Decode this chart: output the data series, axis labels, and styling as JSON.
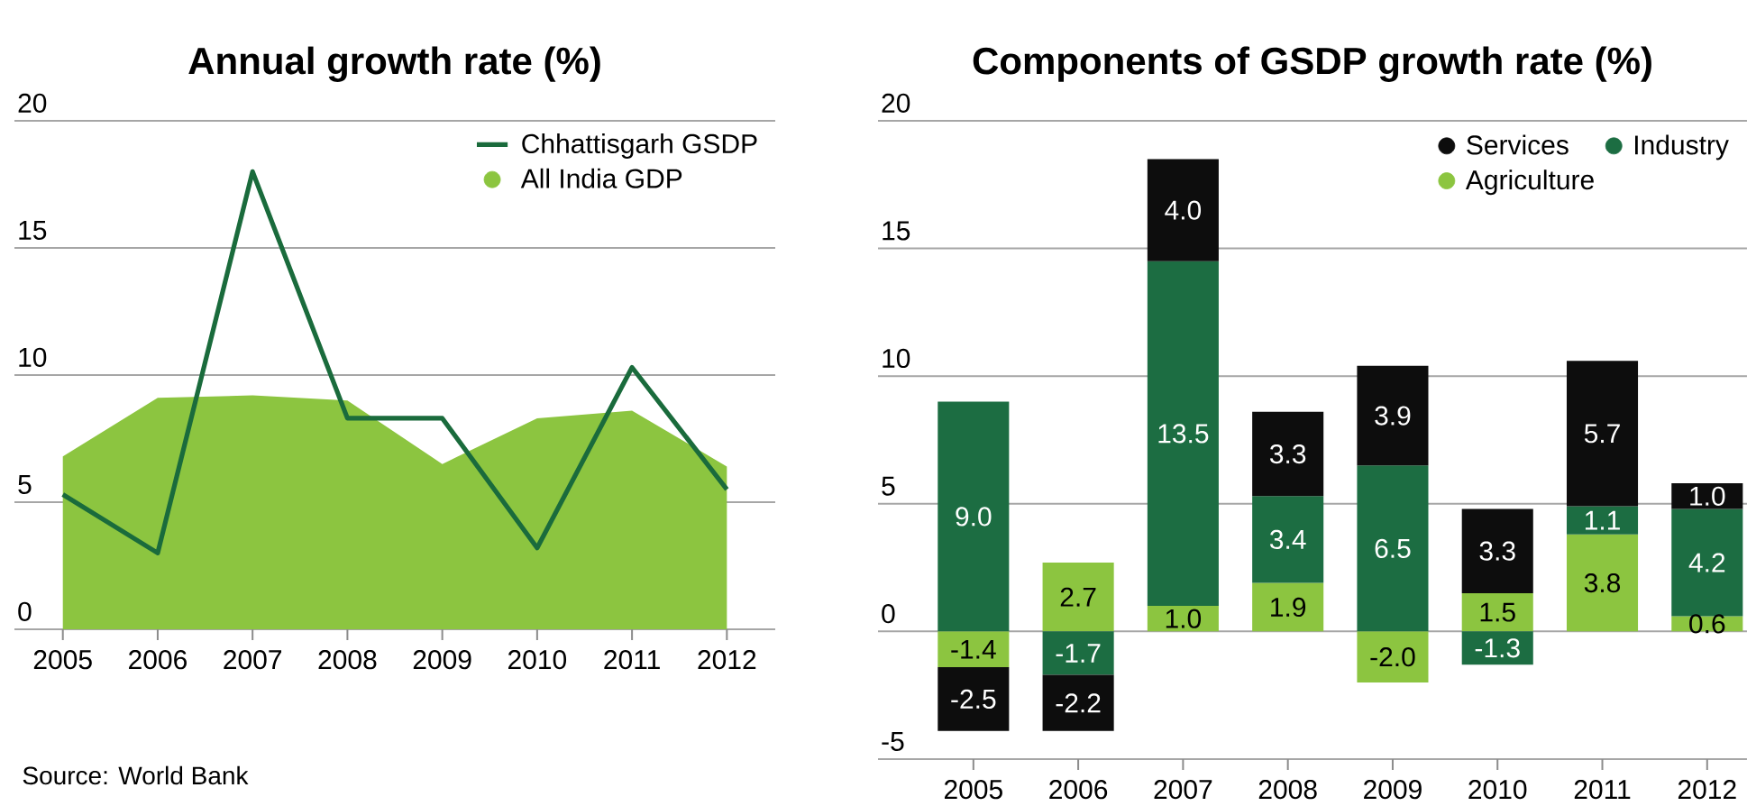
{
  "chart_data": [
    {
      "type": "line",
      "title": "Annual growth rate (%)",
      "categories": [
        "2005",
        "2006",
        "2007",
        "2008",
        "2009",
        "2010",
        "2011",
        "2012"
      ],
      "series": [
        {
          "name": "Chhattisgarh GSDP",
          "type": "line",
          "color": "#1a6b3c",
          "values": [
            5.3,
            3.0,
            18.0,
            8.3,
            8.3,
            3.2,
            10.3,
            5.5
          ]
        },
        {
          "name": "All India GDP",
          "type": "area",
          "color": "#8cc540",
          "values": [
            6.8,
            9.1,
            9.2,
            9.0,
            6.5,
            8.3,
            8.6,
            6.4
          ]
        }
      ],
      "ylim": [
        0,
        20
      ],
      "yticks": [
        0,
        5,
        10,
        15,
        20
      ],
      "grid": "y",
      "legend": "top right",
      "annotations": [
        "Source: World Bank"
      ]
    },
    {
      "type": "bar",
      "title": "Components of GSDP growth rate (%)",
      "categories": [
        "2005",
        "2006",
        "2007",
        "2008",
        "2009",
        "2010",
        "2011",
        "2012"
      ],
      "stacked": true,
      "series": [
        {
          "name": "Agriculture",
          "color": "#8cc540",
          "values": [
            -1.4,
            2.7,
            1.0,
            1.9,
            -2.0,
            1.5,
            3.8,
            0.6
          ],
          "value_labels": [
            "-1.4",
            "2.7",
            "1.0",
            "1.9",
            "-2.0",
            "1.5",
            "3.8",
            "0.6"
          ]
        },
        {
          "name": "Industry",
          "color": "#1c6d42",
          "values": [
            9.0,
            -1.7,
            13.5,
            3.4,
            6.5,
            -1.3,
            1.1,
            4.2
          ],
          "value_labels": [
            "9.0",
            "-1.7",
            "13.5",
            "3.4",
            "6.5",
            "-1.3",
            "1.1",
            "4.2"
          ]
        },
        {
          "name": "Services",
          "color": "#0d0d0d",
          "values": [
            -2.5,
            -2.2,
            4.0,
            3.3,
            3.9,
            3.3,
            5.7,
            1.0
          ],
          "value_labels": [
            "-2.5",
            "-2.2",
            "4.0",
            "3.3",
            "3.9",
            "3.3",
            "5.7",
            "1.0"
          ]
        }
      ],
      "ylim": [
        -5,
        20
      ],
      "yticks": [
        -5,
        0,
        5,
        10,
        15,
        20
      ],
      "grid": "y",
      "legend": "top right"
    }
  ]
}
